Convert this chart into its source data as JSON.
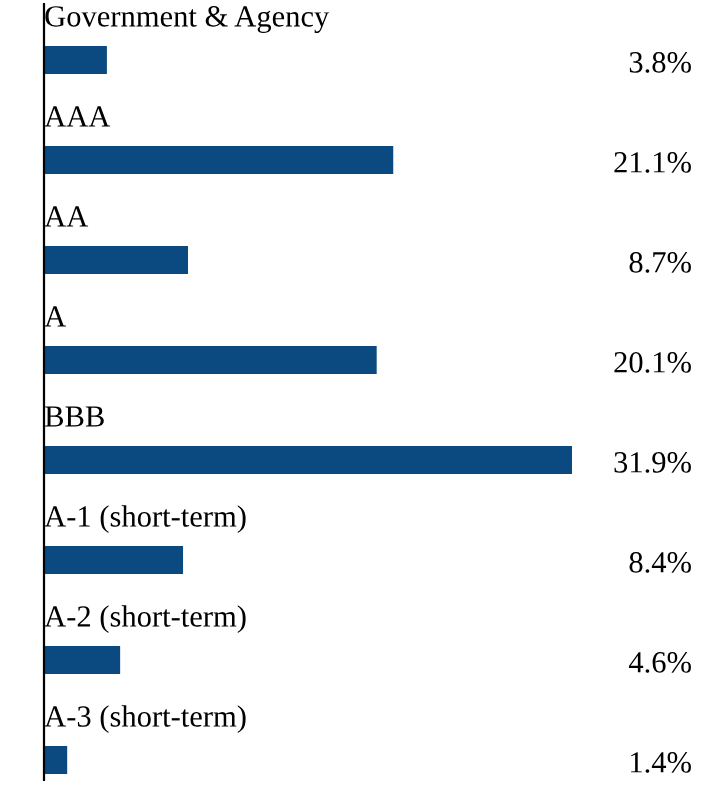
{
  "chart_data": {
    "type": "bar",
    "orientation": "horizontal",
    "categories": [
      "Government & Agency",
      "AAA",
      "AA",
      "A",
      "BBB",
      "A-1 (short-term)",
      "A-2 (short-term)",
      "A-3 (short-term)"
    ],
    "values": [
      3.8,
      21.1,
      8.7,
      20.1,
      31.9,
      8.4,
      4.6,
      1.4
    ],
    "value_labels": [
      "3.8%",
      "21.1%",
      "8.7%",
      "20.1%",
      "31.9%",
      "8.4%",
      "4.6%",
      "1.4%"
    ],
    "color": "#0b4a80"
  }
}
